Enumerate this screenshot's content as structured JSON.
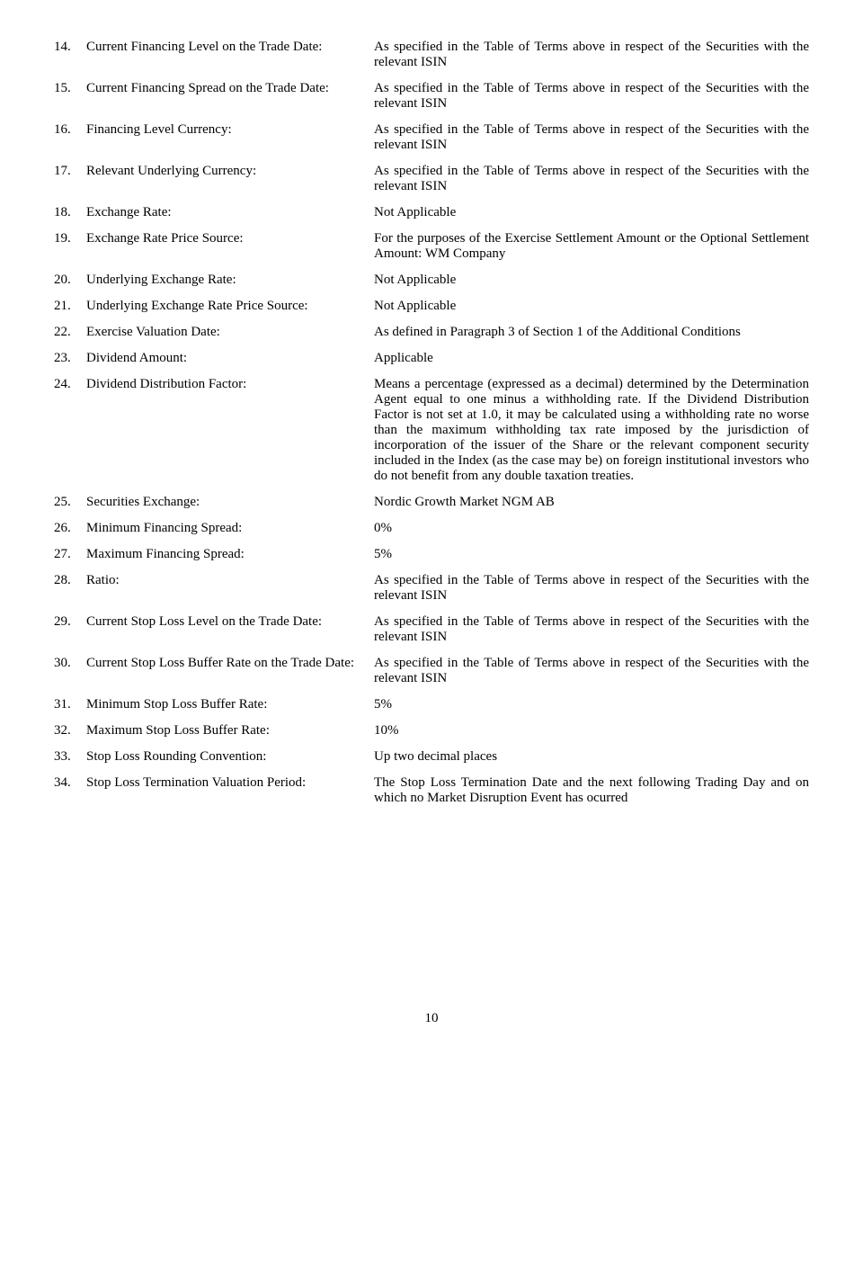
{
  "rows": [
    {
      "num": "14.",
      "label": "Current Financing Level on the Trade Date:",
      "value": "As specified in the Table of Terms above in respect of the Securities with the relevant ISIN"
    },
    {
      "num": "15.",
      "label": "Current Financing Spread on the Trade Date:",
      "value": "As specified in the Table of Terms above in respect of the Securities with the relevant ISIN"
    },
    {
      "num": "16.",
      "label": "Financing Level Currency:",
      "value": "As specified in the Table of Terms above in respect of the Securities with the relevant ISIN"
    },
    {
      "num": "17.",
      "label": "Relevant Underlying Currency:",
      "value": "As specified in the Table of Terms above in respect of the Securities with the relevant ISIN"
    },
    {
      "num": "18.",
      "label": "Exchange Rate:",
      "value": "Not Applicable"
    },
    {
      "num": "19.",
      "label": "Exchange Rate Price Source:",
      "value": "For the purposes of the Exercise Settlement Amount or the Optional Settlement Amount: WM Company"
    },
    {
      "num": "20.",
      "label": "Underlying Exchange Rate:",
      "value": "Not Applicable"
    },
    {
      "num": "21.",
      "label": "Underlying Exchange Rate Price Source:",
      "value": "Not Applicable"
    },
    {
      "num": "22.",
      "label": "Exercise Valuation Date:",
      "value": "As defined in Paragraph 3 of Section 1 of the Additional Conditions"
    },
    {
      "num": "23.",
      "label": "Dividend Amount:",
      "value": "Applicable"
    },
    {
      "num": "24.",
      "label": "Dividend Distribution Factor:",
      "value": "Means a percentage (expressed as a decimal) determined by the Determination Agent equal to one minus a withholding rate. If the Dividend Distribution Factor is not set at 1.0, it may be calculated using a withholding rate no worse than the maximum withholding tax rate imposed by the jurisdiction of incorporation of the issuer of the Share or the relevant component security included in the Index (as the case may be) on foreign institutional investors who do not benefit from any double taxation treaties."
    },
    {
      "num": "25.",
      "label": "Securities Exchange:",
      "value": "Nordic Growth Market NGM AB"
    },
    {
      "num": "26.",
      "label": "Minimum Financing Spread:",
      "value": "0%"
    },
    {
      "num": "27.",
      "label": "Maximum Financing Spread:",
      "value": "5%"
    },
    {
      "num": "28.",
      "label": "Ratio:",
      "value": "As specified in the Table of Terms above in respect of the Securities with the relevant ISIN"
    },
    {
      "num": "29.",
      "label": "Current Stop Loss Level on the Trade Date:",
      "value": "As specified in the Table of Terms above in respect of the Securities with the relevant ISIN"
    },
    {
      "num": "30.",
      "label": "Current Stop Loss Buffer Rate on the Trade Date:",
      "value": "As specified in the Table of Terms above in respect of the Securities with the relevant ISIN"
    },
    {
      "num": "31.",
      "label": "Minimum Stop Loss Buffer Rate:",
      "value": "5%"
    },
    {
      "num": "32.",
      "label": "Maximum Stop Loss Buffer Rate:",
      "value": "10%"
    },
    {
      "num": "33.",
      "label": "Stop Loss Rounding Convention:",
      "value": "Up two decimal places"
    },
    {
      "num": "34.",
      "label": "Stop Loss Termination Valuation Period:",
      "value": "The Stop Loss Termination Date and the next following Trading Day and on which no Market Disruption Event has ocurred"
    }
  ],
  "page_number": "10"
}
